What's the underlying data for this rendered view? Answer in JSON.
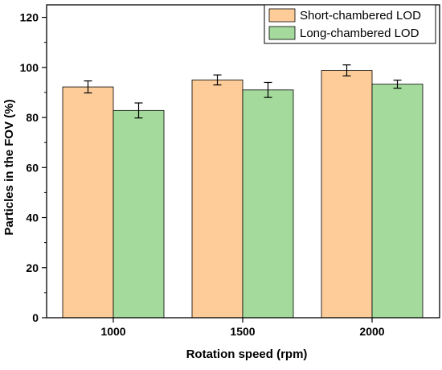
{
  "chart_data": {
    "type": "bar",
    "title": "",
    "xlabel": "Rotation speed (rpm)",
    "ylabel": "Particles in the FOV (%)",
    "categories": [
      "1000",
      "1500",
      "2000"
    ],
    "ylim": [
      0,
      125
    ],
    "yticks": [
      0,
      20,
      40,
      60,
      80,
      100,
      120
    ],
    "grid": false,
    "legend_position": "top-right",
    "error_bars": true,
    "series": [
      {
        "name": "Short-chambered LOD",
        "color": "#FDCC99",
        "values": [
          92.2,
          95.0,
          98.8
        ],
        "errors": [
          2.4,
          2.0,
          2.2
        ]
      },
      {
        "name": "Long-chambered LOD",
        "color": "#A4DA9C",
        "values": [
          82.8,
          91.0,
          93.3
        ],
        "errors": [
          3.0,
          3.0,
          1.6
        ]
      }
    ]
  }
}
